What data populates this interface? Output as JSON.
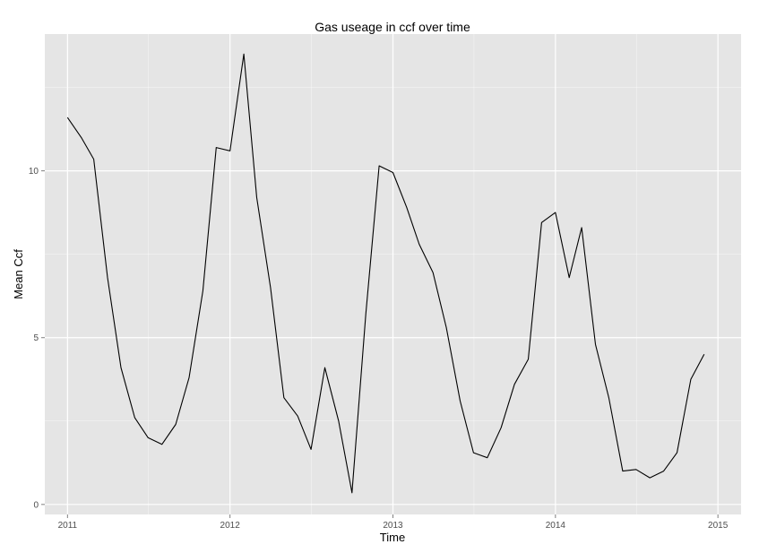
{
  "chart_data": {
    "type": "line",
    "title": "Gas useage in ccf over time",
    "xlabel": "Time",
    "ylabel": "Mean Ccf",
    "x_ticks": [
      "2011",
      "2012",
      "2013",
      "2014",
      "2015"
    ],
    "y_ticks": [
      "0",
      "5",
      "10"
    ],
    "xlim": [
      "2010-11-11",
      "2015-02-22"
    ],
    "ylim": [
      -0.3,
      14.1
    ],
    "grid": true,
    "panel_background": "#e5e5e5",
    "grid_color": "#ffffff",
    "line_color": "#000000",
    "series": [
      {
        "x": [
          "2011-01",
          "2011-02",
          "2011-03",
          "2011-04",
          "2011-05",
          "2011-06",
          "2011-07",
          "2011-08",
          "2011-09",
          "2011-10",
          "2011-11",
          "2011-12",
          "2012-01",
          "2012-02",
          "2012-03",
          "2012-04",
          "2012-05",
          "2012-06",
          "2012-07",
          "2012-08",
          "2012-09",
          "2012-10",
          "2012-11",
          "2012-12",
          "2013-01",
          "2013-02",
          "2013-03",
          "2013-04",
          "2013-05",
          "2013-06",
          "2013-07",
          "2013-08",
          "2013-09",
          "2013-10",
          "2013-11",
          "2013-12",
          "2014-01",
          "2014-02",
          "2014-03",
          "2014-04",
          "2014-05",
          "2014-06",
          "2014-07",
          "2014-08",
          "2014-09",
          "2014-10",
          "2014-11",
          "2014-12"
        ],
        "values": [
          11.6,
          11.0,
          10.35,
          6.8,
          4.1,
          2.6,
          2.0,
          1.8,
          2.4,
          3.8,
          6.4,
          10.7,
          10.6,
          13.5,
          9.2,
          6.5,
          3.2,
          2.65,
          1.65,
          4.1,
          2.5,
          0.35,
          5.7,
          10.15,
          9.95,
          8.9,
          7.8,
          6.95,
          5.3,
          3.1,
          1.55,
          1.4,
          2.3,
          3.6,
          4.35,
          8.45,
          8.75,
          6.8,
          8.3,
          4.8,
          3.2,
          1.0,
          1.05,
          0.8,
          1.0,
          1.55,
          3.75,
          4.5
        ]
      }
    ]
  }
}
